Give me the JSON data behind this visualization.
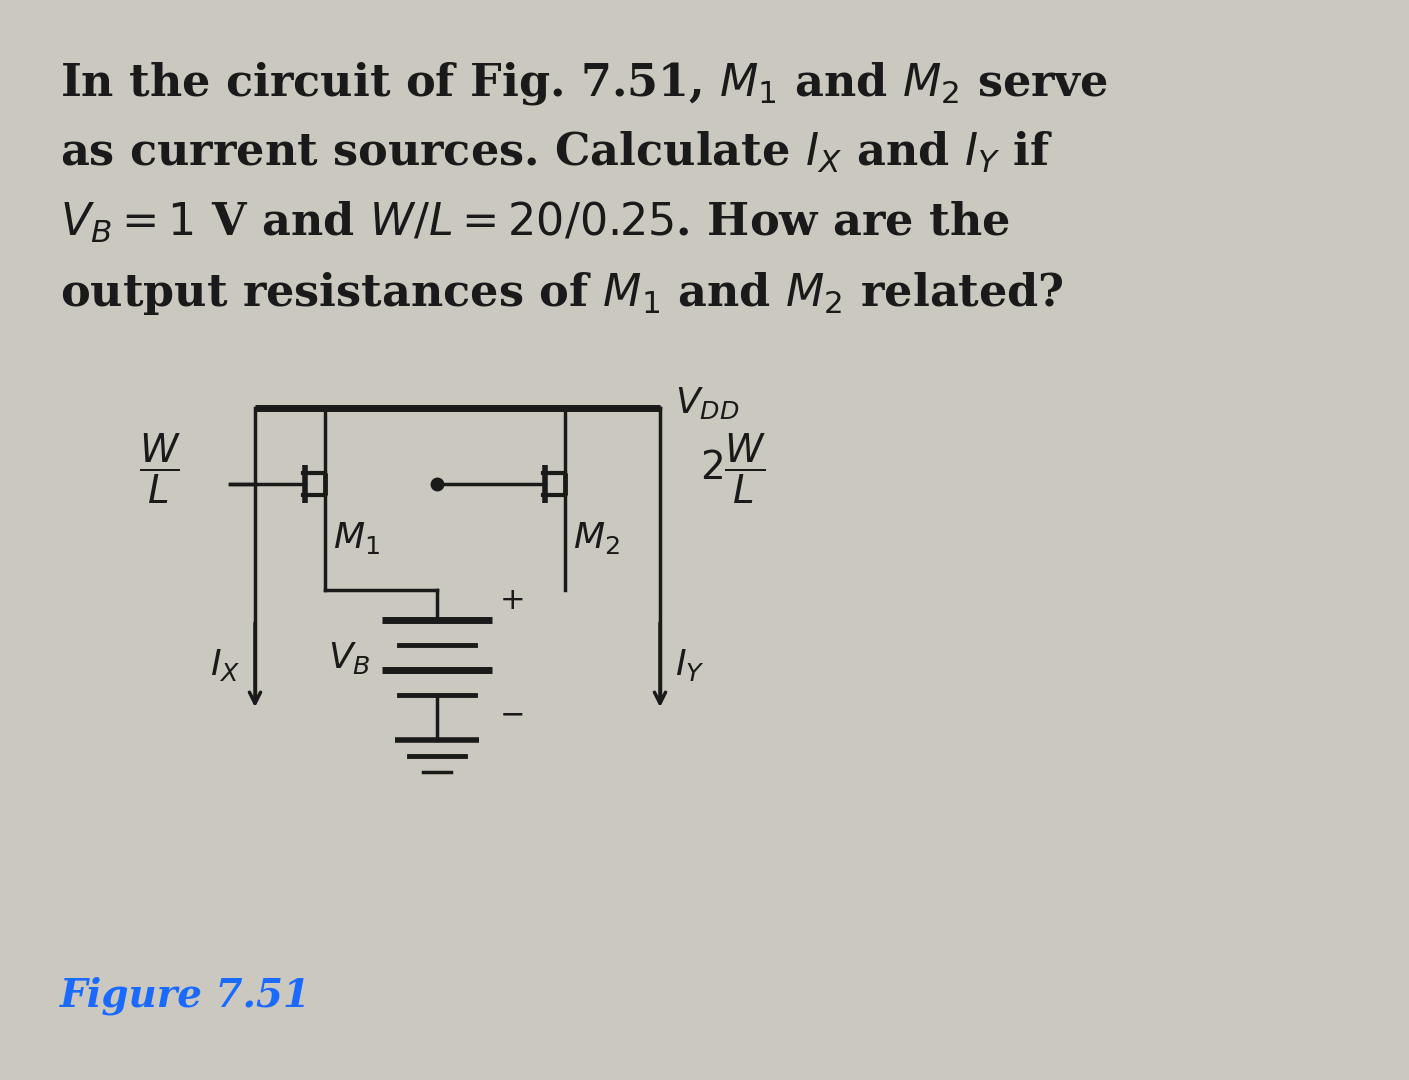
{
  "bg_color": "#cbc8c0",
  "text_color": "#1a1a1a",
  "figure_label_color": "#1a6aff",
  "title_lines": [
    "In the circuit of Fig. 7.51, $M_1$ and $M_2$ serve",
    "as current sources. Calculate $I_X$ and $I_Y$ if",
    "$V_B = 1$ V and $W/L = 20/0.25$. How are the",
    "output resistances of $M_1$ and $M_2$ related?"
  ],
  "figure_label": "Figure 7.51",
  "vdd_label": "$V_{DD}$",
  "m1_label": "$M_1$",
  "m2_label": "$M_2$",
  "vb_label": "$V_B$",
  "ix_label": "$I_X$",
  "iy_label": "$I_Y$",
  "plus_label": "+",
  "minus_label": "−",
  "lw": 2.5,
  "text_fontsize": 32,
  "circuit_fontsize": 26,
  "wl_fontsize": 28,
  "figure_fontsize": 28
}
